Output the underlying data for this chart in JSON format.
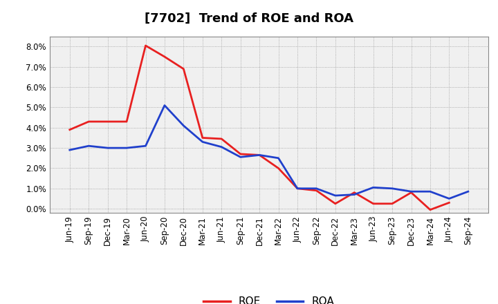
{
  "title": "[7702]  Trend of ROE and ROA",
  "labels": [
    "Jun-19",
    "Sep-19",
    "Dec-19",
    "Mar-20",
    "Jun-20",
    "Sep-20",
    "Dec-20",
    "Mar-21",
    "Jun-21",
    "Sep-21",
    "Dec-21",
    "Mar-22",
    "Jun-22",
    "Sep-22",
    "Dec-22",
    "Mar-23",
    "Jun-23",
    "Sep-23",
    "Dec-23",
    "Mar-24",
    "Jun-24",
    "Sep-24"
  ],
  "roe": [
    3.9,
    4.3,
    4.3,
    4.3,
    8.05,
    7.5,
    6.9,
    3.5,
    3.45,
    2.7,
    2.65,
    2.0,
    1.0,
    0.9,
    0.25,
    0.8,
    0.25,
    0.25,
    0.8,
    -0.05,
    0.3,
    null
  ],
  "roa": [
    2.9,
    3.1,
    3.0,
    3.0,
    3.1,
    5.1,
    4.1,
    3.3,
    3.05,
    2.55,
    2.65,
    2.5,
    1.0,
    1.0,
    0.65,
    0.7,
    1.05,
    1.0,
    0.85,
    0.85,
    0.5,
    0.85
  ],
  "roe_color": "#e82020",
  "roa_color": "#2040cc",
  "bg_color": "#ffffff",
  "plot_bg_color": "#f0f0f0",
  "grid_color": "#999999",
  "ylim": [
    -0.2,
    8.5
  ],
  "yticks": [
    0.0,
    1.0,
    2.0,
    3.0,
    4.0,
    5.0,
    6.0,
    7.0,
    8.0
  ],
  "title_fontsize": 13,
  "legend_fontsize": 11,
  "tick_fontsize": 8.5,
  "line_width": 2.0
}
